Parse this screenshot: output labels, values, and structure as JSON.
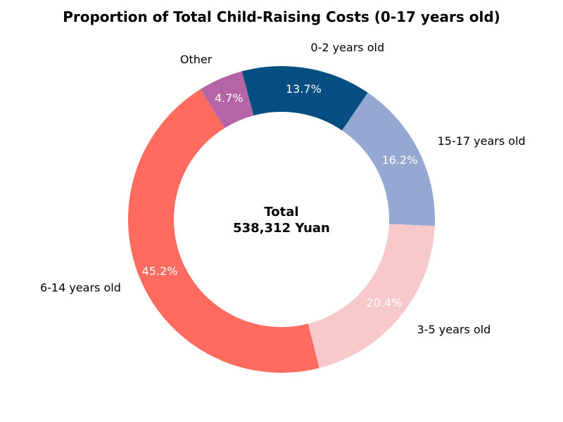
{
  "chart_data": {
    "type": "pie",
    "title": "Proportion of Total Child-Raising Costs (0-17 years old)",
    "center_label": {
      "line1": "Total",
      "line2": "538,312 Yuan"
    },
    "slices": [
      {
        "label": "0-2 years old",
        "percent": 13.7,
        "percent_label": "13.7%",
        "color": "#054e82"
      },
      {
        "label": "15-17 years old",
        "percent": 16.2,
        "percent_label": "16.2%",
        "color": "#94a8d1"
      },
      {
        "label": "3-5 years old",
        "percent": 20.4,
        "percent_label": "20.4%",
        "color": "#f7c9ca"
      },
      {
        "label": "6-14 years old",
        "percent": 45.2,
        "percent_label": "45.2%",
        "color": "#ff6b5f"
      },
      {
        "label": "Other",
        "percent": 4.7,
        "percent_label": "4.7%",
        "color": "#b565a7"
      }
    ],
    "donut": true,
    "legend": "none"
  }
}
